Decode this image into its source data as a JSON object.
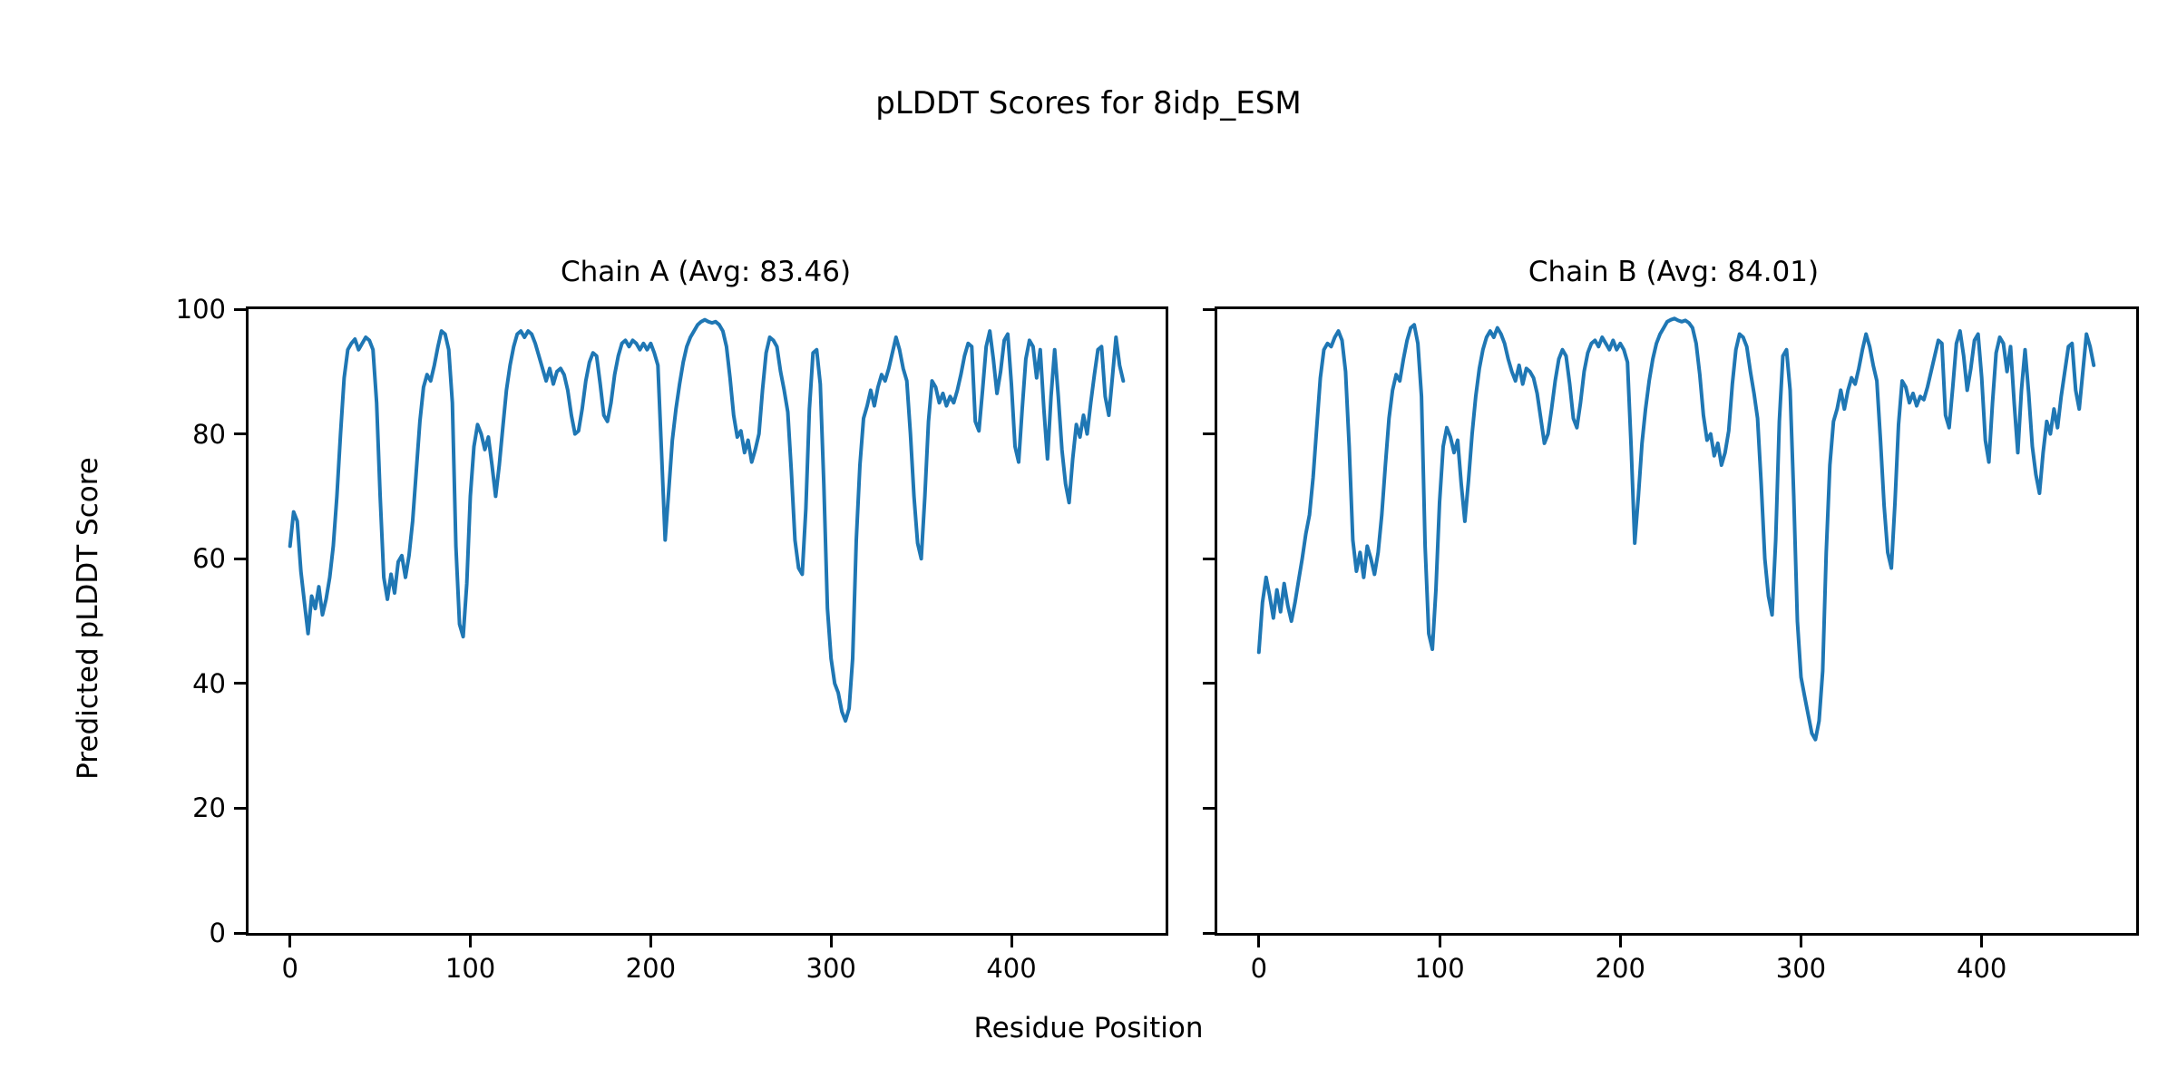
{
  "figure": {
    "suptitle": "pLDDT Scores for 8idp_ESM",
    "background_color": "#ffffff",
    "text_color": "#000000",
    "line_color": "#1f77b4"
  },
  "shared_axes": {
    "xlabel": "Residue Position",
    "ylabel": "Predicted pLDDT Score"
  },
  "chart_data": [
    {
      "type": "line",
      "title": "Chain A (Avg: 83.46)",
      "chain": "A",
      "average_plddt": 83.46,
      "xlabel": "Residue Position",
      "ylabel": "Predicted pLDDT Score",
      "xlim": [
        -23,
        485.5
      ],
      "ylim": [
        0,
        100
      ],
      "xticks": [
        0,
        100,
        200,
        300,
        400
      ],
      "yticks": [
        0,
        20,
        40,
        60,
        80,
        100
      ],
      "grid": false,
      "legend": "none",
      "series": [
        {
          "name": "Chain A pLDDT",
          "color": "#1f77b4",
          "x_start": 0,
          "x_step": 2,
          "values": [
            62,
            67.5,
            66,
            58,
            53,
            48,
            54,
            52,
            55.5,
            51,
            53.5,
            57,
            62,
            70,
            80,
            89,
            93.5,
            94.5,
            95.2,
            93.5,
            94.5,
            95.5,
            95,
            93.5,
            85,
            70,
            57,
            53.5,
            57.5,
            54.5,
            59.5,
            60.5,
            57,
            60.5,
            66,
            74,
            82,
            87.5,
            89.5,
            88.5,
            91,
            94,
            96.5,
            96,
            93.5,
            85,
            62,
            49.5,
            47.5,
            56,
            70,
            78,
            81.5,
            80,
            77.5,
            79.5,
            75,
            70,
            75,
            81,
            87,
            91,
            94,
            96,
            96.5,
            95.5,
            96.5,
            96,
            94.5,
            92.5,
            90.5,
            88.5,
            90.5,
            88,
            90,
            90.5,
            89.5,
            87,
            83,
            80,
            80.5,
            84,
            88.5,
            91.5,
            93,
            92.5,
            88,
            83,
            82,
            85,
            89.5,
            92.5,
            94.5,
            95,
            94,
            95,
            94.5,
            93.5,
            94.5,
            93.5,
            94.5,
            93,
            91,
            77,
            63,
            71,
            79,
            84,
            88,
            91.5,
            94,
            95.5,
            96.5,
            97.5,
            98,
            98.3,
            98,
            97.8,
            98,
            97.5,
            96.5,
            94,
            89,
            83,
            79.5,
            80.5,
            77,
            79,
            75.5,
            77.5,
            80,
            87,
            93,
            95.5,
            95,
            94,
            90,
            87,
            83.5,
            74,
            63,
            58.5,
            57.5,
            68,
            84,
            93,
            93.5,
            88,
            72,
            52,
            44,
            40,
            38.5,
            35.5,
            34,
            36,
            44,
            63,
            75,
            82.5,
            84.5,
            87,
            84.5,
            87.5,
            89.5,
            88.5,
            90.5,
            93,
            95.5,
            93.5,
            90.5,
            88.5,
            80,
            70,
            62.5,
            60,
            70,
            82,
            88.5,
            87.5,
            85,
            86.5,
            84.5,
            86,
            85,
            87,
            89.5,
            92.5,
            94.5,
            94,
            82,
            80.5,
            87,
            94,
            96.5,
            92,
            86.5,
            90,
            95,
            96,
            88,
            78,
            75.5,
            84,
            92,
            95,
            94,
            89,
            93.5,
            84,
            76,
            86,
            93.5,
            86,
            77.5,
            72,
            69,
            76,
            81.5,
            79.5,
            83,
            80,
            85,
            89.5,
            93.5,
            94,
            86,
            83,
            89,
            95.5,
            91,
            88.5
          ]
        }
      ]
    },
    {
      "type": "line",
      "title": "Chain B (Avg: 84.01)",
      "chain": "B",
      "average_plddt": 84.01,
      "xlabel": "Residue Position",
      "ylabel": "Predicted pLDDT Score",
      "xlim": [
        -23,
        485.5
      ],
      "ylim": [
        0,
        100
      ],
      "xticks": [
        0,
        100,
        200,
        300,
        400
      ],
      "yticks": [
        0,
        20,
        40,
        60,
        80,
        100
      ],
      "grid": false,
      "legend": "none",
      "series": [
        {
          "name": "Chain B pLDDT",
          "color": "#1f77b4",
          "x_start": 0,
          "x_step": 2,
          "values": [
            45,
            53,
            57,
            54,
            50.5,
            55,
            51.5,
            56,
            52.5,
            50,
            53,
            56.5,
            60,
            64,
            67,
            73,
            81,
            89,
            93.5,
            94.5,
            94,
            95.5,
            96.5,
            95,
            90,
            78,
            63,
            58,
            61,
            57,
            62,
            60,
            57.5,
            61,
            67,
            75,
            82.5,
            87,
            89.5,
            88.5,
            92,
            95,
            97,
            97.5,
            94.5,
            86,
            62,
            48,
            45.5,
            55,
            69,
            78,
            81,
            79.5,
            77,
            79,
            72,
            66,
            72.5,
            80,
            86,
            90.5,
            93.5,
            95.5,
            96.5,
            95.5,
            97,
            96,
            94.5,
            92,
            90,
            88.5,
            91,
            88,
            90.5,
            90,
            89,
            86.5,
            82.5,
            78.5,
            80,
            84,
            88.5,
            92,
            93.5,
            92.5,
            88,
            82.5,
            81,
            85,
            90,
            93,
            94.5,
            95,
            94,
            95.5,
            94.5,
            93.5,
            95,
            93.5,
            94.5,
            93.5,
            91.5,
            78,
            62.5,
            70,
            78.5,
            84,
            88.5,
            92,
            94.5,
            96,
            97,
            98,
            98.3,
            98.5,
            98.2,
            98,
            98.2,
            97.8,
            97,
            94.5,
            89.5,
            83,
            79,
            80,
            76.5,
            78.5,
            75,
            77,
            80.5,
            88,
            93.5,
            96,
            95.5,
            94,
            90,
            86.5,
            82.5,
            72,
            60,
            54,
            51,
            63,
            82,
            92.5,
            93.5,
            87,
            70,
            50,
            41,
            38,
            35,
            32,
            31,
            34,
            42,
            61,
            75,
            82,
            84,
            87,
            84,
            87,
            89,
            88,
            90.5,
            93.5,
            96,
            94,
            91,
            88.5,
            79,
            68.5,
            61,
            58.5,
            69,
            81.5,
            88.5,
            87.5,
            85,
            86.5,
            84.5,
            86,
            85.5,
            87.5,
            90,
            92.5,
            95,
            94.5,
            83,
            81,
            87.5,
            94.5,
            96.5,
            92.5,
            87,
            90.5,
            95,
            96,
            89,
            79,
            75.5,
            85,
            93,
            95.5,
            94.5,
            90,
            94,
            85,
            77,
            87,
            93.5,
            86.5,
            78,
            73.5,
            70.5,
            77,
            82,
            80,
            84,
            81,
            86,
            90,
            94,
            94.5,
            87,
            84,
            90,
            96,
            94,
            91
          ]
        }
      ]
    }
  ]
}
